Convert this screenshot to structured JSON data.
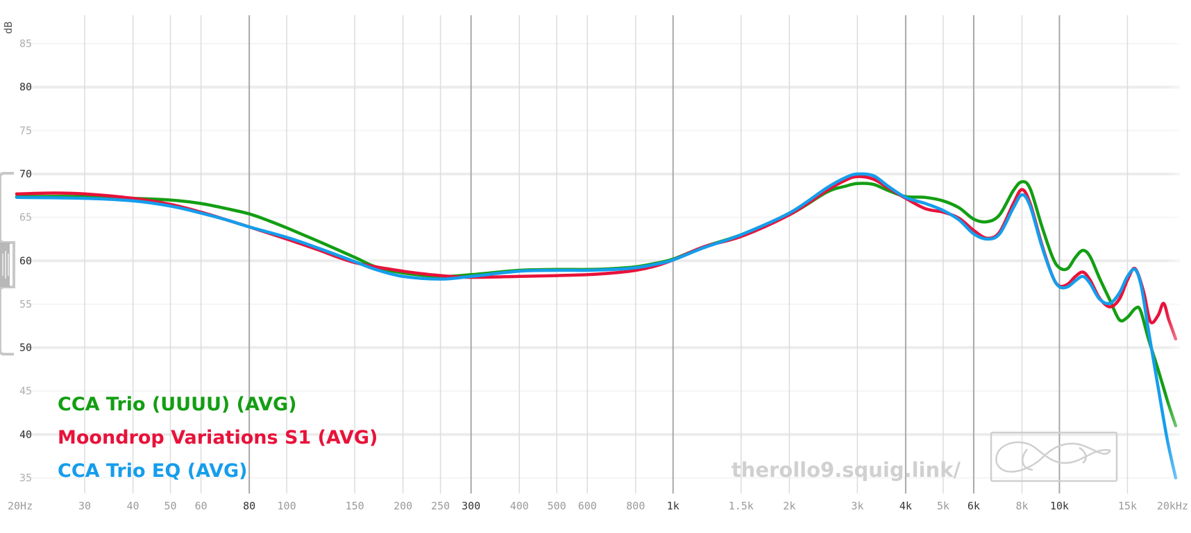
{
  "chart_data": {
    "type": "line",
    "xlabel": "",
    "ylabel": "dB",
    "x_scale": "log",
    "xlim": [
      20,
      20000
    ],
    "ylim": [
      34,
      87
    ],
    "grid": true,
    "legend_position": "bottom-left",
    "y_ticks": [
      {
        "value": 85,
        "label": "85",
        "major": false
      },
      {
        "value": 80,
        "label": "80",
        "major": true
      },
      {
        "value": 75,
        "label": "75",
        "major": false
      },
      {
        "value": 70,
        "label": "70",
        "major": true
      },
      {
        "value": 65,
        "label": "65",
        "major": false
      },
      {
        "value": 60,
        "label": "60",
        "major": true
      },
      {
        "value": 55,
        "label": "55",
        "major": false
      },
      {
        "value": 50,
        "label": "50",
        "major": true
      },
      {
        "value": 45,
        "label": "45",
        "major": false
      },
      {
        "value": 40,
        "label": "40",
        "major": true
      },
      {
        "value": 35,
        "label": "35",
        "major": false
      }
    ],
    "x_ticks": [
      {
        "value": 20,
        "label": "20Hz",
        "major": false
      },
      {
        "value": 30,
        "label": "30",
        "major": false
      },
      {
        "value": 40,
        "label": "40",
        "major": false
      },
      {
        "value": 50,
        "label": "50",
        "major": false
      },
      {
        "value": 60,
        "label": "60",
        "major": false
      },
      {
        "value": 80,
        "label": "80",
        "major": true
      },
      {
        "value": 100,
        "label": "100",
        "major": false
      },
      {
        "value": 150,
        "label": "150",
        "major": false
      },
      {
        "value": 200,
        "label": "200",
        "major": false
      },
      {
        "value": 250,
        "label": "250",
        "major": false
      },
      {
        "value": 300,
        "label": "300",
        "major": true
      },
      {
        "value": 400,
        "label": "400",
        "major": false
      },
      {
        "value": 500,
        "label": "500",
        "major": false
      },
      {
        "value": 600,
        "label": "600",
        "major": false
      },
      {
        "value": 800,
        "label": "800",
        "major": false
      },
      {
        "value": 1000,
        "label": "1k",
        "major": true
      },
      {
        "value": 1500,
        "label": "1.5k",
        "major": false
      },
      {
        "value": 2000,
        "label": "2k",
        "major": false
      },
      {
        "value": 3000,
        "label": "3k",
        "major": false
      },
      {
        "value": 4000,
        "label": "4k",
        "major": true
      },
      {
        "value": 5000,
        "label": "5k",
        "major": false
      },
      {
        "value": 6000,
        "label": "6k",
        "major": true
      },
      {
        "value": 8000,
        "label": "8k",
        "major": false
      },
      {
        "value": 10000,
        "label": "10k",
        "major": true
      },
      {
        "value": 15000,
        "label": "15k",
        "major": false
      },
      {
        "value": 20000,
        "label": "20kHz",
        "major": false
      }
    ],
    "series": [
      {
        "name": "CCA Trio (UUUU) (AVG)",
        "color": "#139e13",
        "points": [
          [
            20,
            67.4
          ],
          [
            30,
            67.4
          ],
          [
            40,
            67.2
          ],
          [
            50,
            67.0
          ],
          [
            60,
            66.6
          ],
          [
            70,
            66.0
          ],
          [
            80,
            65.4
          ],
          [
            90,
            64.6
          ],
          [
            100,
            63.8
          ],
          [
            120,
            62.3
          ],
          [
            150,
            60.4
          ],
          [
            170,
            59.3
          ],
          [
            200,
            58.6
          ],
          [
            250,
            58.2
          ],
          [
            300,
            58.4
          ],
          [
            400,
            58.9
          ],
          [
            500,
            59.0
          ],
          [
            600,
            59.0
          ],
          [
            700,
            59.1
          ],
          [
            800,
            59.3
          ],
          [
            900,
            59.7
          ],
          [
            1000,
            60.2
          ],
          [
            1200,
            61.6
          ],
          [
            1500,
            63.0
          ],
          [
            2000,
            65.3
          ],
          [
            2500,
            67.9
          ],
          [
            2800,
            68.6
          ],
          [
            3000,
            68.9
          ],
          [
            3300,
            68.8
          ],
          [
            3600,
            68.1
          ],
          [
            4000,
            67.4
          ],
          [
            4500,
            67.3
          ],
          [
            5000,
            66.9
          ],
          [
            5500,
            66.1
          ],
          [
            6000,
            64.8
          ],
          [
            6500,
            64.5
          ],
          [
            7000,
            65.3
          ],
          [
            7600,
            68.1
          ],
          [
            8000,
            69.1
          ],
          [
            8400,
            68.3
          ],
          [
            9000,
            64.0
          ],
          [
            9600,
            60.4
          ],
          [
            10000,
            59.2
          ],
          [
            10500,
            59.1
          ],
          [
            11000,
            60.4
          ],
          [
            11500,
            61.2
          ],
          [
            12000,
            60.5
          ],
          [
            12700,
            58.0
          ],
          [
            13500,
            55.5
          ],
          [
            14300,
            53.2
          ],
          [
            15000,
            53.5
          ],
          [
            15700,
            54.5
          ],
          [
            16200,
            54.3
          ],
          [
            17000,
            51.0
          ],
          [
            18000,
            47.5
          ],
          [
            19000,
            44.0
          ],
          [
            20000,
            41.0
          ]
        ]
      },
      {
        "name": "Moondrop Variations S1 (AVG)",
        "color": "#e8123a",
        "points": [
          [
            20,
            67.7
          ],
          [
            25,
            67.8
          ],
          [
            30,
            67.7
          ],
          [
            40,
            67.2
          ],
          [
            50,
            66.5
          ],
          [
            60,
            65.6
          ],
          [
            70,
            64.7
          ],
          [
            80,
            63.9
          ],
          [
            100,
            62.5
          ],
          [
            120,
            61.3
          ],
          [
            150,
            59.8
          ],
          [
            200,
            58.8
          ],
          [
            250,
            58.3
          ],
          [
            300,
            58.1
          ],
          [
            400,
            58.2
          ],
          [
            500,
            58.3
          ],
          [
            600,
            58.4
          ],
          [
            700,
            58.6
          ],
          [
            800,
            58.9
          ],
          [
            900,
            59.4
          ],
          [
            1000,
            60.1
          ],
          [
            1200,
            61.6
          ],
          [
            1500,
            62.8
          ],
          [
            2000,
            65.3
          ],
          [
            2500,
            68.1
          ],
          [
            2800,
            69.3
          ],
          [
            3000,
            69.7
          ],
          [
            3300,
            69.4
          ],
          [
            3600,
            68.4
          ],
          [
            4000,
            67.2
          ],
          [
            4500,
            66.0
          ],
          [
            5000,
            65.6
          ],
          [
            5500,
            64.9
          ],
          [
            6000,
            63.5
          ],
          [
            6500,
            62.6
          ],
          [
            7000,
            63.3
          ],
          [
            7600,
            66.6
          ],
          [
            8000,
            68.2
          ],
          [
            8400,
            66.6
          ],
          [
            9000,
            61.9
          ],
          [
            9600,
            58.2
          ],
          [
            10000,
            57.1
          ],
          [
            10500,
            57.3
          ],
          [
            11000,
            58.2
          ],
          [
            11500,
            58.7
          ],
          [
            12000,
            57.8
          ],
          [
            12700,
            55.7
          ],
          [
            13500,
            54.7
          ],
          [
            14300,
            55.6
          ],
          [
            15000,
            57.8
          ],
          [
            15700,
            59.1
          ],
          [
            16500,
            56.5
          ],
          [
            17200,
            53.0
          ],
          [
            18000,
            53.7
          ],
          [
            18600,
            55.1
          ],
          [
            19200,
            53.2
          ],
          [
            20000,
            51.0
          ]
        ]
      },
      {
        "name": "CCA Trio EQ (AVG)",
        "color": "#159deb",
        "points": [
          [
            20,
            67.3
          ],
          [
            30,
            67.2
          ],
          [
            40,
            66.9
          ],
          [
            50,
            66.3
          ],
          [
            60,
            65.5
          ],
          [
            70,
            64.7
          ],
          [
            80,
            63.9
          ],
          [
            100,
            62.7
          ],
          [
            120,
            61.5
          ],
          [
            150,
            59.9
          ],
          [
            170,
            59.0
          ],
          [
            200,
            58.2
          ],
          [
            250,
            57.9
          ],
          [
            300,
            58.2
          ],
          [
            400,
            58.8
          ],
          [
            500,
            58.9
          ],
          [
            600,
            58.9
          ],
          [
            700,
            59.0
          ],
          [
            800,
            59.2
          ],
          [
            900,
            59.6
          ],
          [
            1000,
            60.1
          ],
          [
            1200,
            61.5
          ],
          [
            1500,
            63.0
          ],
          [
            2000,
            65.5
          ],
          [
            2500,
            68.4
          ],
          [
            2800,
            69.6
          ],
          [
            3000,
            70.0
          ],
          [
            3300,
            69.8
          ],
          [
            3600,
            68.6
          ],
          [
            4000,
            67.3
          ],
          [
            4500,
            66.6
          ],
          [
            5000,
            65.8
          ],
          [
            5500,
            64.7
          ],
          [
            6000,
            63.1
          ],
          [
            6500,
            62.5
          ],
          [
            7000,
            63.1
          ],
          [
            7600,
            66.1
          ],
          [
            8000,
            67.6
          ],
          [
            8400,
            66.3
          ],
          [
            9000,
            61.7
          ],
          [
            9600,
            58.2
          ],
          [
            10000,
            57.0
          ],
          [
            10500,
            57.0
          ],
          [
            11000,
            57.7
          ],
          [
            11500,
            58.2
          ],
          [
            12000,
            57.4
          ],
          [
            12700,
            55.6
          ],
          [
            13500,
            55.1
          ],
          [
            14300,
            56.3
          ],
          [
            15000,
            58.2
          ],
          [
            15700,
            59.0
          ],
          [
            16300,
            57.0
          ],
          [
            17000,
            52.0
          ],
          [
            18000,
            45.5
          ],
          [
            19000,
            39.5
          ],
          [
            20000,
            35.0
          ]
        ]
      }
    ],
    "watermark": "therollo9.squig.link/"
  }
}
